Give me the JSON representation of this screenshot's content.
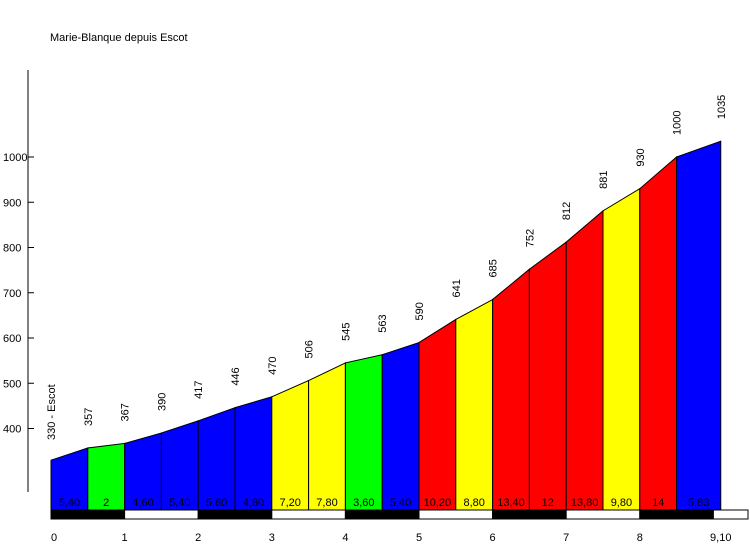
{
  "chart_data": {
    "type": "area",
    "title": "Marie-Blanque depuis Escot",
    "xlabel": "",
    "ylabel": "",
    "xlim": [
      0,
      9.1
    ],
    "yticks": [
      400,
      500,
      600,
      700,
      800,
      900,
      1000
    ],
    "xticks": [
      "0",
      "1",
      "2",
      "3",
      "4",
      "5",
      "6",
      "7",
      "8",
      "9,10"
    ],
    "points": [
      {
        "x": 0,
        "y": 330,
        "label": "330 - Escot"
      },
      {
        "x": 0.5,
        "y": 357,
        "label": "357"
      },
      {
        "x": 1,
        "y": 367,
        "label": "367"
      },
      {
        "x": 1.5,
        "y": 390,
        "label": "390"
      },
      {
        "x": 2,
        "y": 417,
        "label": "417"
      },
      {
        "x": 2.5,
        "y": 446,
        "label": "446"
      },
      {
        "x": 3,
        "y": 470,
        "label": "470"
      },
      {
        "x": 3.5,
        "y": 506,
        "label": "506"
      },
      {
        "x": 4,
        "y": 545,
        "label": "545"
      },
      {
        "x": 4.5,
        "y": 563,
        "label": "563"
      },
      {
        "x": 5,
        "y": 590,
        "label": "590"
      },
      {
        "x": 5.5,
        "y": 641,
        "label": "641"
      },
      {
        "x": 6,
        "y": 685,
        "label": "685"
      },
      {
        "x": 6.5,
        "y": 752,
        "label": "752"
      },
      {
        "x": 7,
        "y": 812,
        "label": "812"
      },
      {
        "x": 7.5,
        "y": 881,
        "label": "881"
      },
      {
        "x": 8,
        "y": 930,
        "label": "930"
      },
      {
        "x": 8.5,
        "y": 1000,
        "label": "1000"
      },
      {
        "x": 9.1,
        "y": 1035,
        "label": "1035"
      }
    ],
    "segments": [
      {
        "grade": "5,40",
        "color": "#0000ff"
      },
      {
        "grade": "2",
        "color": "#00ff00"
      },
      {
        "grade": "4,60",
        "color": "#0000ff"
      },
      {
        "grade": "5,40",
        "color": "#0000ff"
      },
      {
        "grade": "5,80",
        "color": "#0000ff"
      },
      {
        "grade": "4,80",
        "color": "#0000ff"
      },
      {
        "grade": "7,20",
        "color": "#ffff00"
      },
      {
        "grade": "7,80",
        "color": "#ffff00"
      },
      {
        "grade": "3,60",
        "color": "#00ff00"
      },
      {
        "grade": "5,40",
        "color": "#0000ff"
      },
      {
        "grade": "10,20",
        "color": "#ff0000"
      },
      {
        "grade": "8,80",
        "color": "#ffff00"
      },
      {
        "grade": "13,40",
        "color": "#ff0000"
      },
      {
        "grade": "12",
        "color": "#ff0000"
      },
      {
        "grade": "13,80",
        "color": "#ff0000"
      },
      {
        "grade": "9,80",
        "color": "#ffff00"
      },
      {
        "grade": "14",
        "color": "#ff0000"
      },
      {
        "grade": "5,83",
        "color": "#0000ff"
      }
    ],
    "grid": false,
    "legend": "none"
  }
}
